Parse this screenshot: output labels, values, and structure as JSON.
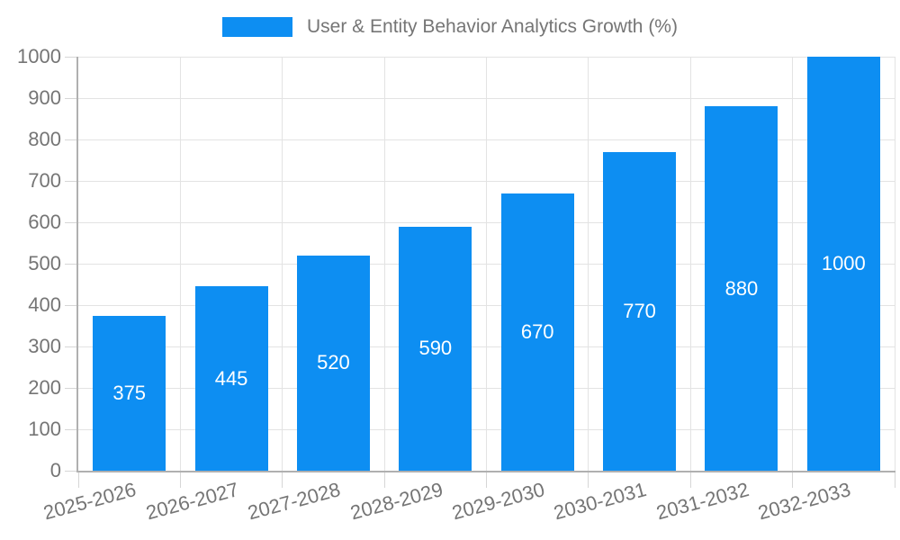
{
  "chart_data": {
    "type": "bar",
    "title": "User & Entity Behavior Analytics Growth (%)",
    "categories": [
      "2025-2026",
      "2026-2027",
      "2027-2028",
      "2028-2029",
      "2029-2030",
      "2030-2031",
      "2031-2032",
      "2032-2033"
    ],
    "values": [
      375,
      445,
      520,
      590,
      670,
      770,
      880,
      1000
    ],
    "yticks": [
      0,
      100,
      200,
      300,
      400,
      500,
      600,
      700,
      800,
      900,
      1000
    ],
    "ylim": [
      0,
      1000
    ],
    "xlabel": "",
    "ylabel": "",
    "grid": true,
    "legend_position": "top",
    "x_label_rotation_deg": -15,
    "colors": {
      "bar": "#0d8ef2",
      "axis_text": "#757575",
      "value_label": "#ffffff",
      "gridline": "#e3e3e3",
      "tick": "#d6d6d6",
      "axis_line": "#b0b0b0",
      "background": "#ffffff"
    }
  }
}
